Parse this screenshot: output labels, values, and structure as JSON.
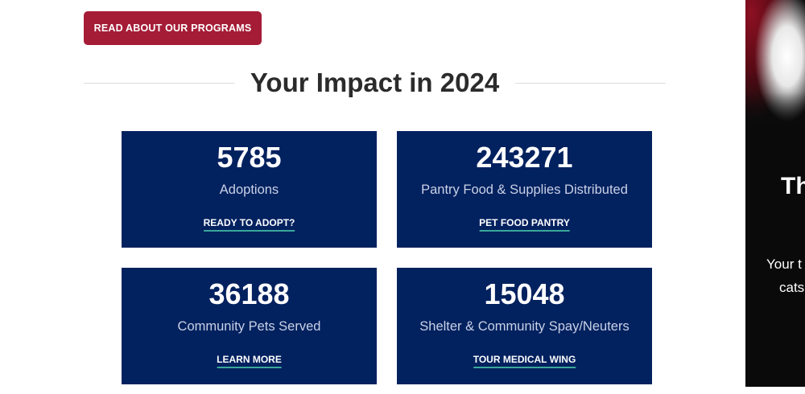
{
  "cta": {
    "label": "READ ABOUT OUR PROGRAMS"
  },
  "impact": {
    "heading": "Your Impact in 2024",
    "stats": [
      {
        "value": "5785",
        "label": "Adoptions",
        "link": "READY TO ADOPT?"
      },
      {
        "value": "243271",
        "label": "Pantry Food & Supplies Distributed",
        "link": "PET FOOD PANTRY"
      },
      {
        "value": "36188",
        "label": "Community Pets Served",
        "link": "LEARN MORE"
      },
      {
        "value": "15048",
        "label": "Shelter & Community Spay/Neuters",
        "link": "TOUR MEDICAL WING"
      }
    ]
  },
  "side_panel": {
    "title_fragment": "Th",
    "text_line1": "Your t",
    "text_line2": "cats"
  },
  "colors": {
    "cta_background": "#a51c37",
    "card_background": "#02215f",
    "link_underline": "#3aa89a",
    "heading_text": "#2b2b2b"
  }
}
